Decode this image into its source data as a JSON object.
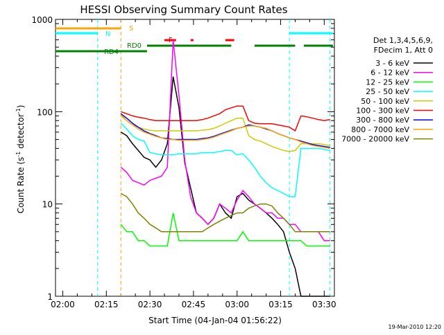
{
  "chart_data": {
    "type": "line",
    "title": "HESSI Observing Summary Count Rates",
    "xlabel": "Start Time (04-Jan-04 01:56:22)",
    "ylabel_main": "Count Rate (s",
    "ylabel_sup1": "-1",
    "ylabel_mid": " detector",
    "ylabel_sup2": "-1",
    "ylabel_end": ")",
    "yscale": "log",
    "ylim": [
      1,
      1000
    ],
    "xlim_minutes": [
      117.5,
      213.5
    ],
    "x_tick_minutes": [
      120,
      135,
      150,
      165,
      180,
      195,
      210
    ],
    "x_tick_labels": [
      "02:00",
      "02:15",
      "02:30",
      "02:45",
      "03:00",
      "03:15",
      "03:30"
    ],
    "y_ticks": [
      1,
      10,
      100,
      1000
    ],
    "y_tick_labels": [
      "1",
      "10",
      "100",
      "1000"
    ],
    "legend": {
      "header1": "Det 1,3,4,5,6,9,",
      "header2": "FDecim 1, Att 0",
      "placement": "right"
    },
    "series": [
      {
        "name": "3 - 6 keV",
        "color": "#000000",
        "x": [
          140,
          142,
          144,
          146,
          148,
          150,
          152,
          154,
          156,
          158,
          160,
          162,
          164,
          166,
          168,
          170,
          172,
          174,
          176,
          178,
          180,
          182,
          184,
          186,
          188,
          190,
          192,
          194,
          196,
          198,
          200,
          202,
          204,
          206,
          208,
          210,
          212
        ],
        "y": [
          60,
          55,
          45,
          38,
          32,
          30,
          25,
          30,
          45,
          240,
          110,
          28,
          15,
          8,
          7,
          6,
          7,
          10,
          8,
          7,
          12,
          13,
          11,
          10,
          9,
          8,
          7,
          6,
          5,
          3,
          2,
          1,
          1,
          1,
          1,
          1,
          1
        ]
      },
      {
        "name": "6 - 12 keV",
        "color": "#ff00ff",
        "x": [
          140,
          142,
          144,
          146,
          148,
          150,
          152,
          154,
          156,
          158,
          160,
          162,
          164,
          166,
          168,
          170,
          172,
          174,
          176,
          178,
          180,
          182,
          184,
          186,
          188,
          190,
          192,
          194,
          196,
          198,
          200,
          202,
          204,
          206,
          208,
          210,
          212
        ],
        "y": [
          25,
          22,
          18,
          17,
          16,
          18,
          19,
          20,
          25,
          600,
          150,
          30,
          12,
          8,
          7,
          6,
          7,
          10,
          9,
          8,
          11,
          14,
          12,
          10,
          9,
          8,
          8,
          7,
          7,
          6,
          6,
          5,
          5,
          5,
          5,
          4,
          4
        ]
      },
      {
        "name": "12 - 25 keV",
        "color": "#00ff00",
        "x": [
          140,
          142,
          144,
          146,
          148,
          150,
          152,
          154,
          156,
          158,
          160,
          162,
          164,
          166,
          168,
          170,
          172,
          174,
          176,
          178,
          180,
          182,
          184,
          186,
          188,
          190,
          192,
          194,
          196,
          198,
          200,
          202,
          204,
          206,
          208,
          210,
          212
        ],
        "y": [
          6,
          5,
          5,
          4,
          4,
          3.5,
          3.5,
          3.5,
          3.5,
          8,
          4,
          4,
          4,
          4,
          4,
          4,
          4,
          4,
          4,
          4,
          4,
          5,
          4,
          4,
          4,
          4,
          4,
          4,
          4,
          4,
          4,
          4,
          3.5,
          3.5,
          3.5,
          3.5,
          3.5
        ]
      },
      {
        "name": "25 - 50 keV",
        "color": "#00ffff",
        "x": [
          140,
          142,
          144,
          146,
          148,
          150,
          152,
          154,
          156,
          158,
          160,
          162,
          164,
          166,
          168,
          170,
          172,
          174,
          176,
          178,
          180,
          182,
          184,
          186,
          188,
          190,
          192,
          194,
          196,
          198,
          200,
          202,
          204,
          206,
          208,
          210,
          212
        ],
        "y": [
          75,
          65,
          55,
          50,
          48,
          36,
          35,
          34,
          34,
          34,
          35,
          35,
          35,
          35,
          36,
          36,
          36,
          37,
          38,
          38,
          34,
          35,
          30,
          25,
          20,
          17,
          15,
          14,
          13,
          12,
          12,
          40,
          40,
          40,
          40,
          39,
          38
        ]
      },
      {
        "name": "50 - 100 keV",
        "color": "#cccc00",
        "x": [
          140,
          142,
          144,
          146,
          148,
          150,
          152,
          154,
          156,
          158,
          160,
          162,
          164,
          166,
          168,
          170,
          172,
          174,
          176,
          178,
          180,
          182,
          184,
          186,
          188,
          190,
          192,
          194,
          196,
          198,
          200,
          202,
          204,
          206,
          208,
          210,
          212
        ],
        "y": [
          95,
          80,
          72,
          68,
          65,
          63,
          62,
          62,
          62,
          62,
          62,
          62,
          62,
          62,
          63,
          64,
          66,
          70,
          75,
          80,
          85,
          85,
          55,
          50,
          48,
          45,
          42,
          40,
          38,
          37,
          38,
          45,
          45,
          45,
          45,
          44,
          43
        ]
      },
      {
        "name": "100 - 300 keV",
        "color": "#ff0000",
        "x": [
          140,
          142,
          144,
          146,
          148,
          150,
          152,
          154,
          156,
          158,
          160,
          162,
          164,
          166,
          168,
          170,
          172,
          174,
          176,
          178,
          180,
          182,
          184,
          186,
          188,
          190,
          192,
          194,
          196,
          198,
          200,
          202,
          204,
          206,
          208,
          210,
          212
        ],
        "y": [
          100,
          95,
          90,
          87,
          85,
          82,
          80,
          80,
          80,
          80,
          80,
          80,
          80,
          80,
          82,
          85,
          90,
          95,
          105,
          110,
          115,
          115,
          80,
          75,
          74,
          74,
          74,
          72,
          70,
          68,
          62,
          90,
          88,
          85,
          82,
          80,
          82
        ]
      },
      {
        "name": "300 - 800 keV",
        "color": "#0000ff",
        "x": [
          140,
          142,
          144,
          146,
          148,
          150,
          152,
          154,
          156,
          158,
          160,
          162,
          164,
          166,
          168,
          170,
          172,
          174,
          176,
          178,
          180,
          182,
          184,
          186,
          188,
          190,
          192,
          194,
          196,
          198,
          200,
          202,
          204,
          206,
          208,
          210,
          212
        ],
        "y": [
          95,
          85,
          75,
          68,
          62,
          58,
          55,
          52,
          51,
          50,
          50,
          50,
          50,
          50,
          51,
          52,
          54,
          57,
          60,
          63,
          66,
          68,
          72,
          70,
          68,
          65,
          62,
          58,
          55,
          52,
          50,
          48,
          46,
          44,
          43,
          42,
          41
        ]
      },
      {
        "name": "800 - 7000 keV",
        "color": "#ffa500",
        "x": [
          140,
          142,
          144,
          146,
          148,
          150,
          152,
          154,
          156,
          158,
          160,
          162,
          164,
          166,
          168,
          170,
          172,
          174,
          176,
          178,
          180,
          182,
          184,
          186,
          188,
          190,
          192,
          194,
          196,
          198,
          200,
          202,
          204,
          206,
          208,
          210,
          212
        ],
        "y": [
          90,
          80,
          72,
          65,
          60,
          57,
          54,
          52,
          50,
          50,
          49,
          49,
          49,
          49,
          50,
          51,
          53,
          56,
          59,
          62,
          66,
          68,
          70,
          70,
          68,
          66,
          62,
          58,
          55,
          52,
          50,
          47,
          45,
          43,
          42,
          41,
          40
        ]
      },
      {
        "name": "7000 - 20000 keV",
        "color": "#808000",
        "x": [
          140,
          142,
          144,
          146,
          148,
          150,
          152,
          154,
          156,
          158,
          160,
          162,
          164,
          166,
          168,
          170,
          172,
          174,
          176,
          178,
          180,
          182,
          184,
          186,
          188,
          190,
          192,
          194,
          196,
          198,
          200,
          202,
          204,
          206,
          208,
          210,
          212
        ],
        "y": [
          13,
          12,
          10,
          8,
          7,
          6,
          5.5,
          5,
          5,
          5,
          5,
          5,
          5,
          5,
          5,
          5.5,
          6,
          6.5,
          7,
          7.5,
          8,
          8,
          9,
          9.5,
          10,
          10,
          9.5,
          8,
          7,
          6,
          5,
          5,
          5,
          5,
          5,
          5,
          5
        ]
      }
    ],
    "state_bars": [
      {
        "label": "S",
        "color": "#ffa500",
        "segments": [
          [
            117.5,
            140
          ]
        ]
      },
      {
        "label": "N",
        "color": "#00ffff",
        "segments": [
          [
            117.5,
            132
          ],
          [
            198,
            213
          ]
        ]
      },
      {
        "label": "RD0",
        "color": "#008000",
        "segments": [
          [
            149,
            178
          ],
          [
            186,
            200
          ],
          [
            203,
            213
          ]
        ]
      },
      {
        "label": "RD4",
        "color": "#008000",
        "segments": [
          [
            117.5,
            149
          ]
        ]
      },
      {
        "label": "F",
        "color": "#ff0000",
        "segments": [
          [
            155,
            159
          ],
          [
            164,
            165
          ],
          [
            176,
            179
          ]
        ]
      }
    ],
    "vertical_lines": [
      {
        "x": 132,
        "color": "#00ffff"
      },
      {
        "x": 140,
        "color": "#ffa500"
      },
      {
        "x": 198,
        "color": "#00ffff"
      },
      {
        "x": 212,
        "color": "#00ffff"
      }
    ],
    "footer_date": "19-Mar-2010 12:20"
  }
}
